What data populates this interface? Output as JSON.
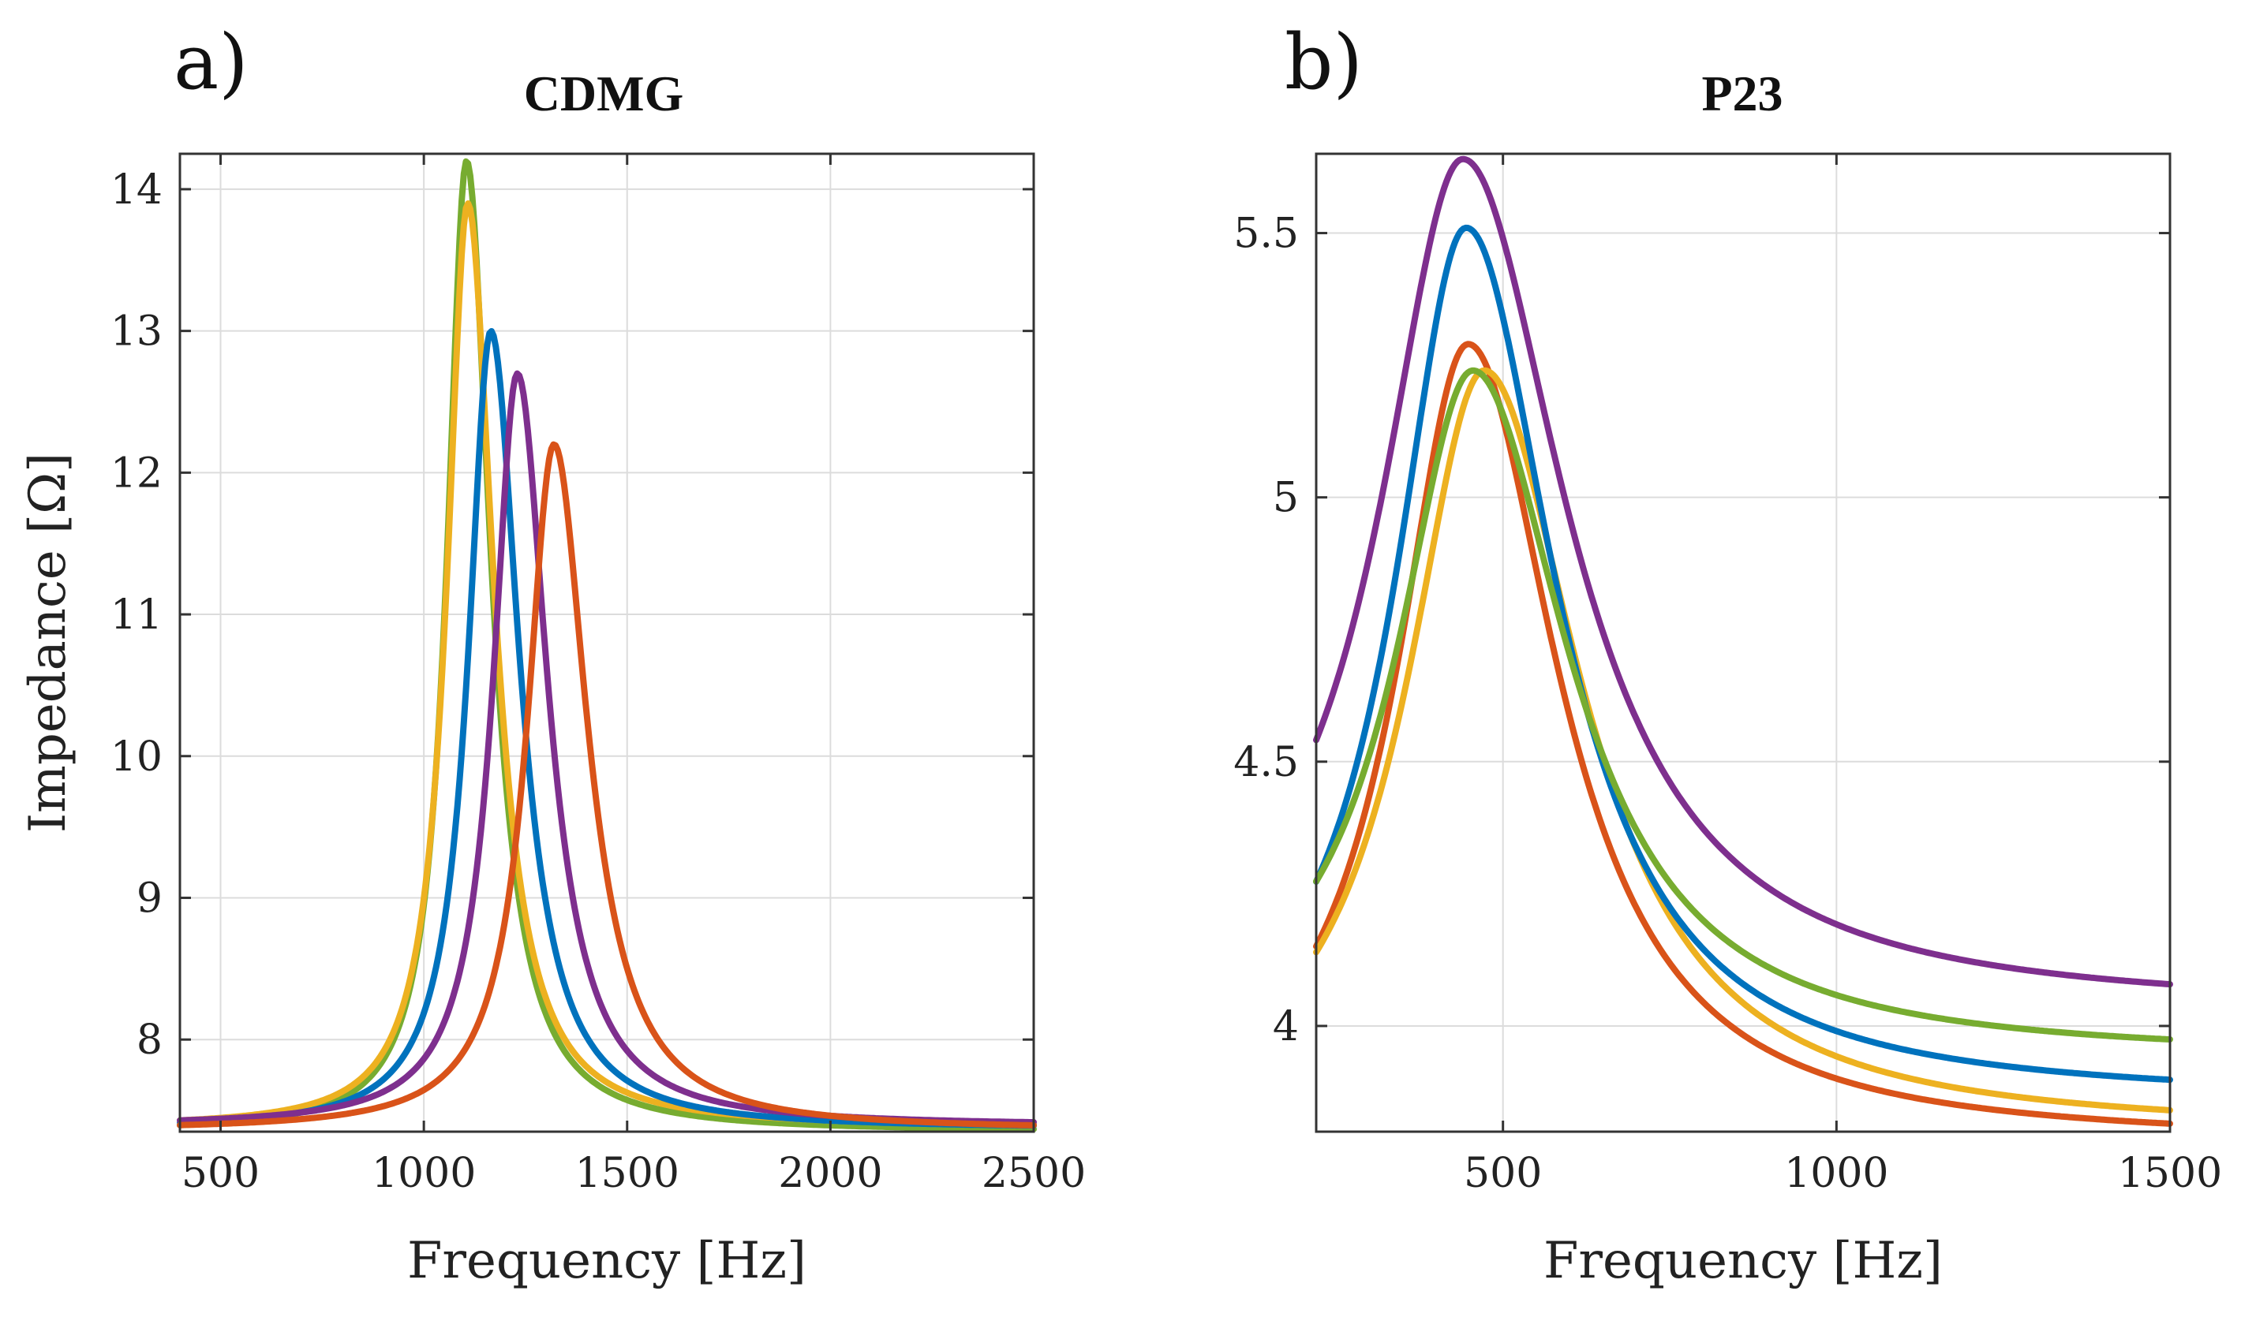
{
  "chart_data": [
    {
      "panel": "a)",
      "type": "line",
      "title": "CDMG",
      "xlabel": "Frequency [Hz]",
      "ylabel": "Impedance [Ω]",
      "xlim": [
        400,
        2500
      ],
      "ylim": [
        7.35,
        14.25
      ],
      "xticks": [
        500,
        1000,
        1500,
        2000,
        2500
      ],
      "yticks": [
        8,
        9,
        10,
        11,
        12,
        13,
        14
      ],
      "grid": true,
      "series": [
        {
          "name": "green",
          "color": "#77AC30",
          "model": {
            "f0": 1105,
            "peak": 14.2,
            "base": 7.35,
            "hw": 58,
            "asym": 0.0,
            "tail": 0.0
          }
        },
        {
          "name": "yellow",
          "color": "#EDB120",
          "model": {
            "f0": 1108,
            "peak": 13.9,
            "base": 7.38,
            "hw": 62,
            "asym": 0.0,
            "tail": 0.0
          }
        },
        {
          "name": "blue",
          "color": "#0072BD",
          "model": {
            "f0": 1165,
            "peak": 13.0,
            "base": 7.37,
            "hw": 68,
            "asym": 0.0,
            "tail": 0.0
          }
        },
        {
          "name": "purple",
          "color": "#7E2F8E",
          "model": {
            "f0": 1230,
            "peak": 12.7,
            "base": 7.39,
            "hw": 72,
            "asym": 0.0,
            "tail": 0.0
          }
        },
        {
          "name": "orange",
          "color": "#D95319",
          "model": {
            "f0": 1320,
            "peak": 12.2,
            "base": 7.36,
            "hw": 80,
            "asym": 0.0,
            "tail": 0.0
          }
        }
      ]
    },
    {
      "panel": "b)",
      "type": "line",
      "title": "P23",
      "xlabel": "Frequency [Hz]",
      "ylabel": "",
      "xlim": [
        220,
        1500
      ],
      "ylim": [
        3.8,
        5.65
      ],
      "xticks": [
        500,
        1000,
        1500
      ],
      "yticks": [
        4,
        4.5,
        5,
        5.5
      ],
      "grid": true,
      "series": [
        {
          "name": "orange",
          "color": "#D95319",
          "model": {
            "f0": 448,
            "peak": 5.29,
            "base": 3.78,
            "hw": 130,
            "tail": 0.0
          }
        },
        {
          "name": "yellow",
          "color": "#EDB120",
          "model": {
            "f0": 472,
            "peak": 5.24,
            "base": 3.8,
            "hw": 140,
            "tail": 0.0
          }
        },
        {
          "name": "blue",
          "color": "#0072BD",
          "model": {
            "f0": 445,
            "peak": 5.51,
            "base": 3.86,
            "hw": 130,
            "tail": 0.0
          }
        },
        {
          "name": "green",
          "color": "#77AC30",
          "model": {
            "f0": 455,
            "peak": 5.24,
            "base": 3.94,
            "hw": 138,
            "tail": 0.0
          }
        },
        {
          "name": "purple",
          "color": "#7E2F8E",
          "model": {
            "f0": 440,
            "peak": 5.64,
            "base": 4.03,
            "hw": 150,
            "tail": 0.0
          }
        }
      ]
    }
  ]
}
